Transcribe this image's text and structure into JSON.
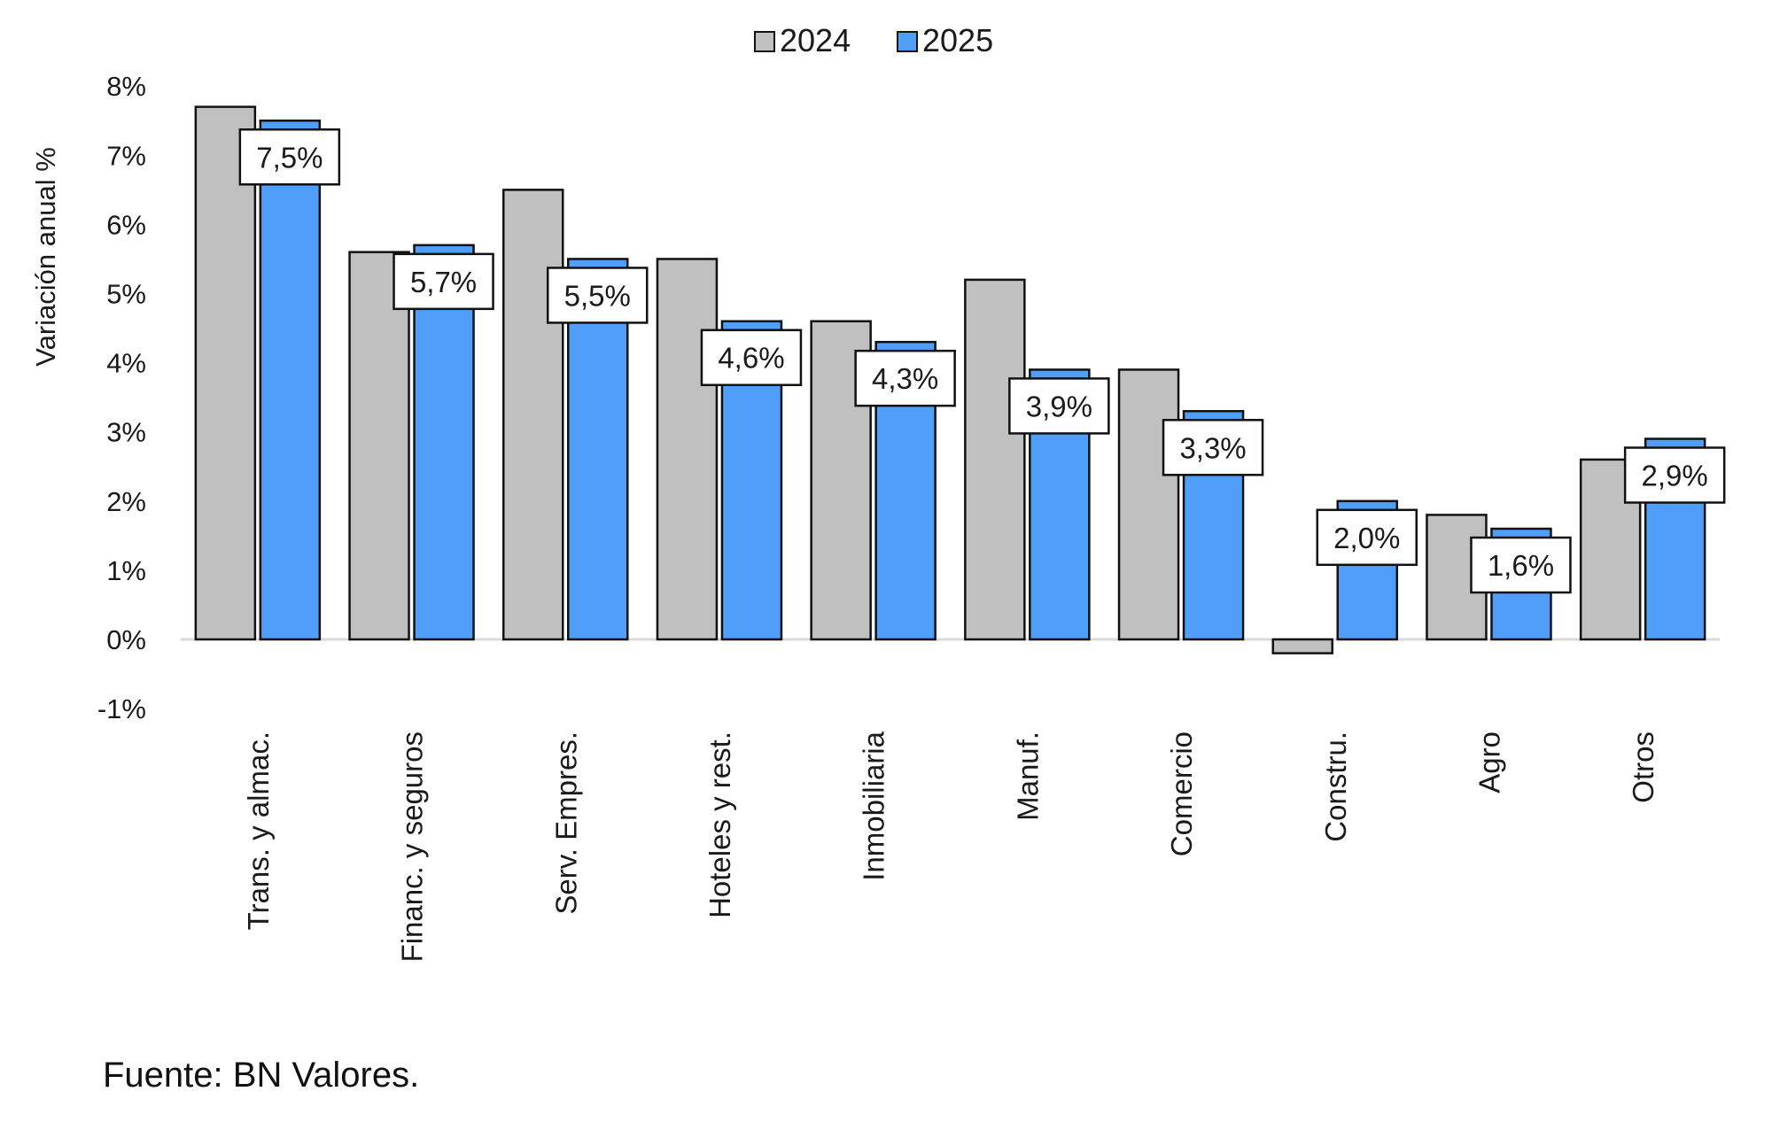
{
  "chart_data": {
    "type": "bar",
    "title": "",
    "xlabel": "",
    "ylabel": "Variación anual %",
    "ylim": [
      -1,
      8
    ],
    "yticks": [
      "-1%",
      "0%",
      "1%",
      "2%",
      "3%",
      "4%",
      "5%",
      "6%",
      "7%",
      "8%"
    ],
    "grid": false,
    "legend_position": "top-center",
    "categories": [
      "Trans. y almac.",
      "Financ. y seguros",
      "Serv. Empres.",
      "Hoteles y rest.",
      "Inmobiliaria",
      "Manuf.",
      "Comercio",
      "Constru.",
      "Agro",
      "Otros"
    ],
    "series": [
      {
        "name": "2024",
        "color": "#c0c0c0",
        "values": [
          7.7,
          5.6,
          6.5,
          5.5,
          4.6,
          5.2,
          3.9,
          -0.2,
          1.8,
          2.6
        ]
      },
      {
        "name": "2025",
        "color": "#4f9ef8",
        "values": [
          7.5,
          5.7,
          5.5,
          4.6,
          4.3,
          3.9,
          3.3,
          2.0,
          1.6,
          2.9
        ],
        "data_labels": [
          "7,5%",
          "5,7%",
          "5,5%",
          "4,6%",
          "4,3%",
          "3,9%",
          "3,3%",
          "2,0%",
          "1,6%",
          "2,9%"
        ]
      }
    ]
  },
  "source": "Fuente: BN Valores."
}
